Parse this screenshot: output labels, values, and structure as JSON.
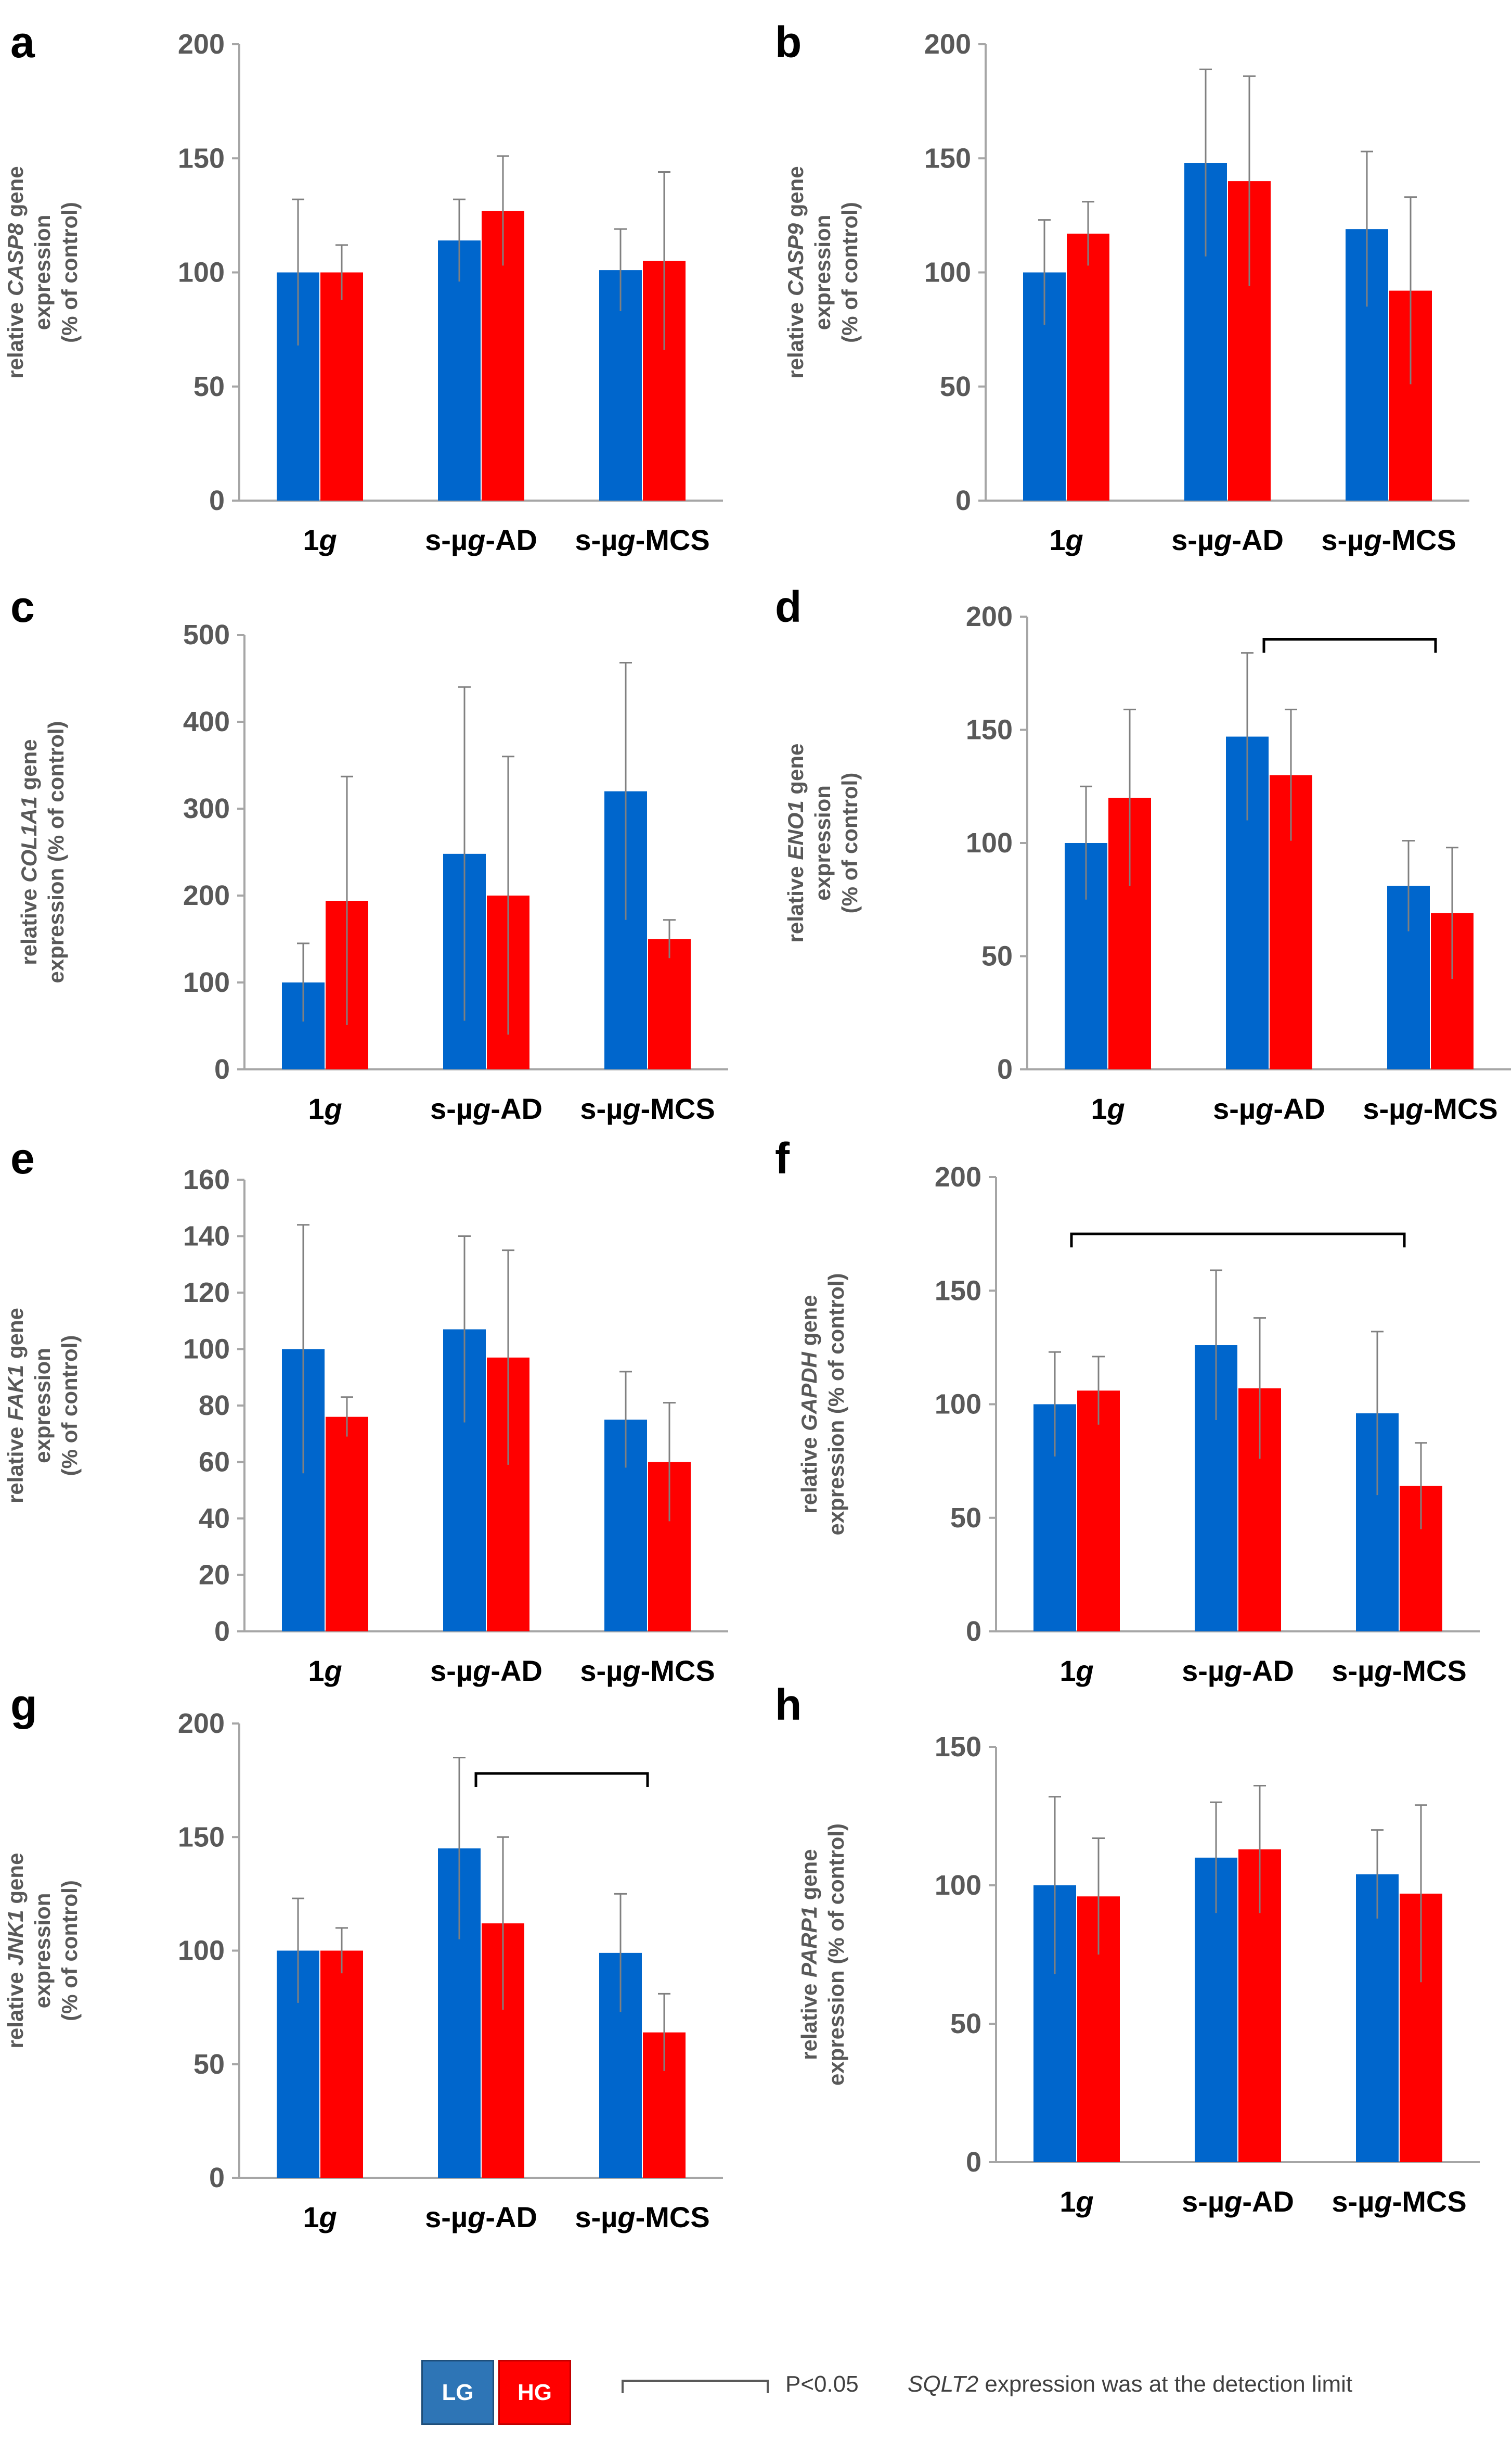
{
  "legend": {
    "lg_label": "LG",
    "hg_label": "HG",
    "significance_label": "P<0.05",
    "note_gene": "SQLT2",
    "note_text": " expression was at the detection limit"
  },
  "colors": {
    "LG": "#0066CC",
    "HG": "#FF0000",
    "axis": "#A6A6A6",
    "text": "#595959"
  },
  "chart_data": [
    {
      "panel": "a",
      "type": "bar",
      "ylabel_prefix": "relative ",
      "gene": "CASP8",
      "ylabel_suffix": " gene",
      "ylabel_lines": [
        "expression",
        "(% of control)"
      ],
      "ylim": [
        0,
        200
      ],
      "yticks": [
        0,
        50,
        100,
        150,
        200
      ],
      "categories": [
        "1g",
        "s-µg-AD",
        "s-µg-MCS"
      ],
      "series": [
        {
          "name": "LG",
          "values": [
            100,
            114,
            101
          ],
          "errors": [
            32,
            18,
            18
          ]
        },
        {
          "name": "HG",
          "values": [
            100,
            127,
            105
          ],
          "errors": [
            12,
            24,
            39
          ]
        }
      ],
      "brackets": []
    },
    {
      "panel": "b",
      "type": "bar",
      "ylabel_prefix": "relative ",
      "gene": "CASP9",
      "ylabel_suffix": " gene",
      "ylabel_lines": [
        "expression",
        "(% of control)"
      ],
      "ylim": [
        0,
        200
      ],
      "yticks": [
        0,
        50,
        100,
        150,
        200
      ],
      "categories": [
        "1g",
        "s-µg-AD",
        "s-µg-MCS"
      ],
      "series": [
        {
          "name": "LG",
          "values": [
            100,
            148,
            119
          ],
          "errors": [
            23,
            41,
            34
          ]
        },
        {
          "name": "HG",
          "values": [
            117,
            140,
            92
          ],
          "errors": [
            14,
            46,
            41
          ]
        }
      ],
      "brackets": []
    },
    {
      "panel": "c",
      "type": "bar",
      "ylabel_prefix": "relative ",
      "gene": "COL1A1",
      "ylabel_suffix": " gene",
      "ylabel_lines": [
        "expression (% of control)"
      ],
      "ylim": [
        0,
        500
      ],
      "yticks": [
        0,
        100,
        200,
        300,
        400,
        500
      ],
      "categories": [
        "1g",
        "s-µg-AD",
        "s-µg-MCS"
      ],
      "series": [
        {
          "name": "LG",
          "values": [
            100,
            248,
            320
          ],
          "errors": [
            45,
            192,
            148
          ]
        },
        {
          "name": "HG",
          "values": [
            194,
            200,
            150
          ],
          "errors": [
            143,
            160,
            22
          ]
        }
      ],
      "brackets": []
    },
    {
      "panel": "d",
      "type": "bar",
      "ylabel_prefix": "relative ",
      "gene": "ENO1",
      "ylabel_suffix": " gene",
      "ylabel_lines": [
        "expression",
        "(% of control)"
      ],
      "ylim": [
        0,
        200
      ],
      "yticks": [
        0,
        50,
        100,
        150,
        200
      ],
      "categories": [
        "1g",
        "s-µg-AD",
        "s-µg-MCS"
      ],
      "series": [
        {
          "name": "LG",
          "values": [
            100,
            147,
            81
          ],
          "errors": [
            25,
            37,
            20
          ]
        },
        {
          "name": "HG",
          "values": [
            120,
            130,
            69
          ],
          "errors": [
            39,
            29,
            29
          ]
        }
      ],
      "brackets": [
        {
          "from": "s-µg-AD",
          "to": "s-µg-MCS",
          "level": 190
        }
      ]
    },
    {
      "panel": "e",
      "type": "bar",
      "ylabel_prefix": "relative ",
      "gene": "FAK1",
      "ylabel_suffix": " gene",
      "ylabel_lines": [
        "expression",
        "(% of control)"
      ],
      "ylim": [
        0,
        160
      ],
      "yticks": [
        0,
        20,
        40,
        60,
        80,
        100,
        120,
        140,
        160
      ],
      "categories": [
        "1g",
        "s-µg-AD",
        "s-µg-MCS"
      ],
      "series": [
        {
          "name": "LG",
          "values": [
            100,
            107,
            75
          ],
          "errors": [
            44,
            33,
            17
          ]
        },
        {
          "name": "HG",
          "values": [
            76,
            97,
            60
          ],
          "errors": [
            7,
            38,
            21
          ]
        }
      ],
      "brackets": []
    },
    {
      "panel": "f",
      "type": "bar",
      "ylabel_prefix": "relative ",
      "gene": "GAPDH",
      "ylabel_suffix": " gene",
      "ylabel_lines": [
        "expression (% of control)"
      ],
      "ylim": [
        0,
        200
      ],
      "yticks": [
        0,
        50,
        100,
        150,
        200
      ],
      "categories": [
        "1g",
        "s-µg-AD",
        "s-µg-MCS"
      ],
      "series": [
        {
          "name": "LG",
          "values": [
            100,
            126,
            96
          ],
          "errors": [
            23,
            33,
            36
          ]
        },
        {
          "name": "HG",
          "values": [
            106,
            107,
            64
          ],
          "errors": [
            15,
            31,
            19
          ]
        }
      ],
      "brackets": [
        {
          "from": "1g",
          "to": "s-µg-MCS",
          "level": 175
        }
      ]
    },
    {
      "panel": "g",
      "type": "bar",
      "ylabel_prefix": "relative ",
      "gene": "JNK1",
      "ylabel_suffix": " gene",
      "ylabel_lines": [
        "expression",
        "(% of control)"
      ],
      "ylim": [
        0,
        200
      ],
      "yticks": [
        0,
        50,
        100,
        150,
        200
      ],
      "categories": [
        "1g",
        "s-µg-AD",
        "s-µg-MCS"
      ],
      "series": [
        {
          "name": "LG",
          "values": [
            100,
            145,
            99
          ],
          "errors": [
            23,
            40,
            26
          ]
        },
        {
          "name": "HG",
          "values": [
            100,
            112,
            64
          ],
          "errors": [
            10,
            38,
            17
          ]
        }
      ],
      "brackets": [
        {
          "from": "s-µg-AD",
          "to": "s-µg-MCS",
          "level": 178
        }
      ]
    },
    {
      "panel": "h",
      "type": "bar",
      "ylabel_prefix": "relative ",
      "gene": "PARP1",
      "ylabel_suffix": " gene",
      "ylabel_lines": [
        "expression (% of control)"
      ],
      "ylim": [
        0,
        150
      ],
      "yticks": [
        0,
        50,
        100,
        150
      ],
      "categories": [
        "1g",
        "s-µg-AD",
        "s-µg-MCS"
      ],
      "series": [
        {
          "name": "LG",
          "values": [
            100,
            110,
            104
          ],
          "errors": [
            32,
            20,
            16
          ]
        },
        {
          "name": "HG",
          "values": [
            96,
            113,
            97
          ],
          "errors": [
            21,
            23,
            32
          ]
        }
      ],
      "brackets": []
    }
  ]
}
